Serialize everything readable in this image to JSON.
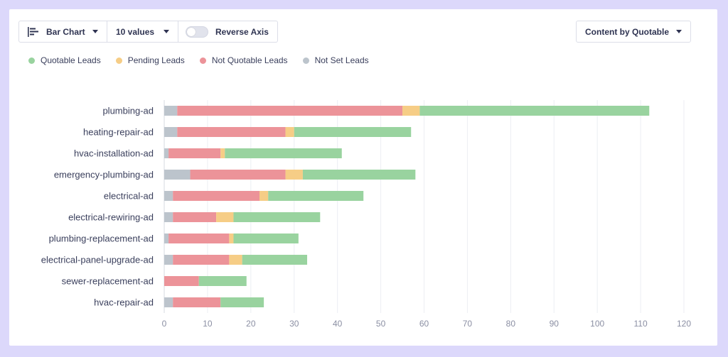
{
  "toolbar": {
    "chart_type_label": "Bar Chart",
    "values_label": "10 values",
    "reverse_axis_label": "Reverse Axis",
    "reverse_axis_on": false,
    "content_label": "Content by Quotable"
  },
  "colors": {
    "quotable": "#99d39f",
    "pending": "#f6cd86",
    "not_quotable": "#ec9399",
    "not_set": "#bcc4cc"
  },
  "chart_data": {
    "type": "bar",
    "orientation": "horizontal",
    "stacked": true,
    "categories": [
      "plumbing-ad",
      "heating-repair-ad",
      "hvac-installation-ad",
      "emergency-plumbing-ad",
      "electrical-ad",
      "electrical-rewiring-ad",
      "plumbing-replacement-ad",
      "electrical-panel-upgrade-ad",
      "sewer-replacement-ad",
      "hvac-repair-ad"
    ],
    "series": [
      {
        "name": "Not Set Leads",
        "key": "not_set",
        "values": [
          3,
          3,
          1,
          6,
          2,
          2,
          1,
          2,
          0,
          2
        ]
      },
      {
        "name": "Not Quotable Leads",
        "key": "not_quotable",
        "values": [
          52,
          25,
          12,
          22,
          20,
          10,
          14,
          13,
          8,
          11
        ]
      },
      {
        "name": "Pending Leads",
        "key": "pending",
        "values": [
          4,
          2,
          1,
          4,
          2,
          4,
          1,
          3,
          0,
          0
        ]
      },
      {
        "name": "Quotable Leads",
        "key": "quotable",
        "values": [
          53,
          27,
          27,
          26,
          22,
          20,
          15,
          15,
          11,
          10
        ]
      }
    ],
    "legend": [
      "Quotable Leads",
      "Pending Leads",
      "Not Quotable Leads",
      "Not Set Leads"
    ],
    "xlim": [
      0,
      120
    ],
    "xticks": [
      "0",
      "10",
      "20",
      "30",
      "40",
      "50",
      "60",
      "70",
      "80",
      "90",
      "100",
      "110",
      "120"
    ],
    "grid": true,
    "legend_position": "top-left"
  }
}
